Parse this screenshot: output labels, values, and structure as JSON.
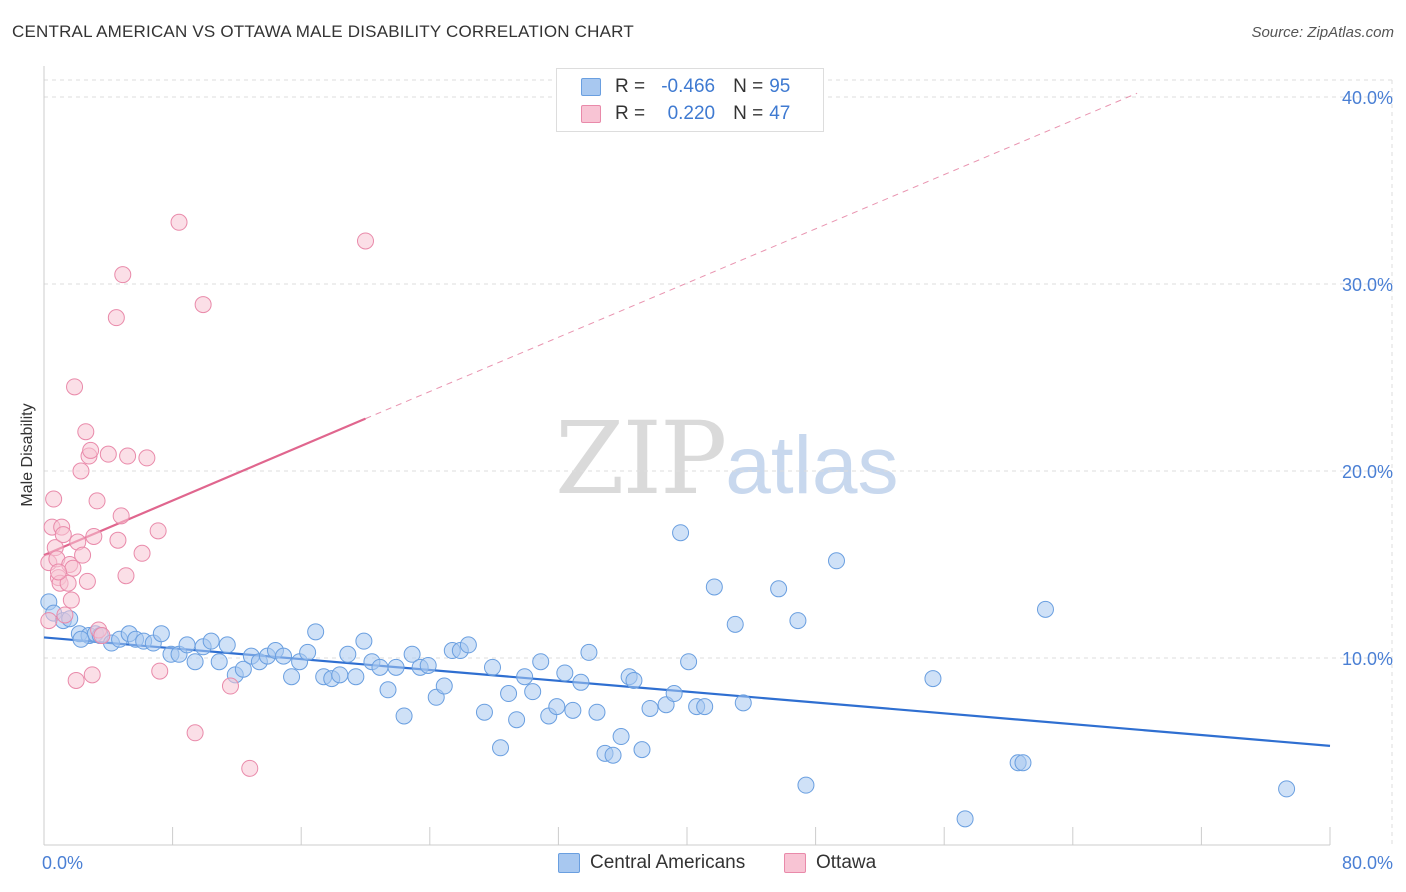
{
  "header": {
    "title": "CENTRAL AMERICAN VS OTTAWA MALE DISABILITY CORRELATION CHART",
    "source": "Source: ZipAtlas.com"
  },
  "watermark": {
    "zip": "ZIP",
    "atlas": "atlas"
  },
  "legend": {
    "rows": [
      {
        "r_label": "R =",
        "r_value": "-0.466",
        "n_label": "N =",
        "n_value": "95",
        "color": "#a8c8f0",
        "border": "#6a9fe0"
      },
      {
        "r_label": "R =",
        "r_value": "0.220",
        "n_label": "N =",
        "n_value": "47",
        "color": "#f8c4d4",
        "border": "#e98aaa"
      }
    ]
  },
  "bottom_legend": {
    "items": [
      {
        "label": "Central Americans",
        "color": "#a8c8f0",
        "border": "#6a9fe0"
      },
      {
        "label": "Ottawa",
        "color": "#f8c4d4",
        "border": "#e98aaa"
      }
    ]
  },
  "chart_data": {
    "type": "scatter",
    "title": "CENTRAL AMERICAN VS OTTAWA MALE DISABILITY CORRELATION CHART",
    "xlabel": "",
    "ylabel": "Male Disability",
    "xlim": [
      0,
      80
    ],
    "ylim": [
      0,
      40
    ],
    "x_tick_labels": [
      "0.0%",
      "80.0%"
    ],
    "y_ticks": [
      10,
      20,
      30,
      40
    ],
    "y_tick_labels": [
      "10.0%",
      "20.0%",
      "30.0%",
      "40.0%"
    ],
    "grid": true,
    "legend_position": "top-center",
    "series": [
      {
        "name": "Central Americans",
        "color": "#a8c8f0",
        "stroke": "#6a9fe0",
        "trend": {
          "x0": 0,
          "y0": 11.1,
          "x1": 80,
          "y1": 5.3,
          "color": "#2f6fd1"
        },
        "points": [
          [
            0.3,
            13.0
          ],
          [
            0.6,
            12.4
          ],
          [
            1.2,
            12.0
          ],
          [
            1.6,
            12.1
          ],
          [
            2.2,
            11.3
          ],
          [
            2.8,
            11.2
          ],
          [
            3.2,
            11.3
          ],
          [
            3.5,
            11.2
          ],
          [
            4.2,
            10.8
          ],
          [
            4.7,
            11.0
          ],
          [
            5.3,
            11.3
          ],
          [
            5.7,
            11.0
          ],
          [
            6.2,
            10.9
          ],
          [
            6.8,
            10.8
          ],
          [
            7.3,
            11.3
          ],
          [
            7.9,
            10.2
          ],
          [
            8.4,
            10.2
          ],
          [
            8.9,
            10.7
          ],
          [
            9.4,
            9.8
          ],
          [
            9.9,
            10.6
          ],
          [
            10.4,
            10.9
          ],
          [
            10.9,
            9.8
          ],
          [
            11.4,
            10.7
          ],
          [
            11.9,
            9.1
          ],
          [
            12.4,
            9.4
          ],
          [
            12.9,
            10.1
          ],
          [
            13.4,
            9.8
          ],
          [
            13.9,
            10.1
          ],
          [
            14.4,
            10.4
          ],
          [
            14.9,
            10.1
          ],
          [
            15.4,
            9.0
          ],
          [
            15.9,
            9.8
          ],
          [
            16.4,
            10.3
          ],
          [
            16.9,
            11.4
          ],
          [
            17.4,
            9.0
          ],
          [
            17.9,
            8.9
          ],
          [
            18.4,
            9.1
          ],
          [
            18.9,
            10.2
          ],
          [
            19.4,
            9.0
          ],
          [
            19.9,
            10.9
          ],
          [
            20.4,
            9.8
          ],
          [
            20.9,
            9.5
          ],
          [
            21.4,
            8.3
          ],
          [
            21.9,
            9.5
          ],
          [
            22.4,
            6.9
          ],
          [
            22.9,
            10.2
          ],
          [
            23.4,
            9.5
          ],
          [
            23.9,
            9.6
          ],
          [
            24.4,
            7.9
          ],
          [
            24.9,
            8.5
          ],
          [
            25.4,
            10.4
          ],
          [
            25.9,
            10.4
          ],
          [
            26.4,
            10.7
          ],
          [
            27.4,
            7.1
          ],
          [
            27.9,
            9.5
          ],
          [
            28.4,
            5.2
          ],
          [
            28.9,
            8.1
          ],
          [
            29.4,
            6.7
          ],
          [
            29.9,
            9.0
          ],
          [
            30.4,
            8.2
          ],
          [
            30.9,
            9.8
          ],
          [
            31.4,
            6.9
          ],
          [
            31.9,
            7.4
          ],
          [
            32.4,
            9.2
          ],
          [
            32.9,
            7.2
          ],
          [
            33.4,
            8.7
          ],
          [
            33.9,
            10.3
          ],
          [
            34.4,
            7.1
          ],
          [
            34.9,
            4.9
          ],
          [
            35.4,
            4.8
          ],
          [
            35.9,
            5.8
          ],
          [
            36.4,
            9.0
          ],
          [
            36.7,
            8.8
          ],
          [
            37.2,
            5.1
          ],
          [
            37.7,
            7.3
          ],
          [
            38.7,
            7.5
          ],
          [
            39.2,
            8.1
          ],
          [
            39.6,
            16.7
          ],
          [
            40.1,
            9.8
          ],
          [
            40.6,
            7.4
          ],
          [
            41.1,
            7.4
          ],
          [
            41.7,
            13.8
          ],
          [
            43.0,
            11.8
          ],
          [
            43.5,
            7.6
          ],
          [
            45.7,
            13.7
          ],
          [
            46.9,
            12.0
          ],
          [
            47.4,
            3.2
          ],
          [
            49.3,
            15.2
          ],
          [
            55.3,
            8.9
          ],
          [
            57.3,
            1.4
          ],
          [
            60.6,
            4.4
          ],
          [
            60.9,
            4.4
          ],
          [
            62.3,
            12.6
          ],
          [
            77.3,
            3.0
          ],
          [
            2.3,
            11.0
          ]
        ]
      },
      {
        "name": "Ottawa",
        "color": "#f8c4d4",
        "stroke": "#e98aaa",
        "trend": {
          "x0": 0,
          "y0": 15.5,
          "x1": 20.0,
          "y1": 22.8,
          "color": "#e0668e",
          "dash_to": {
            "x": 68.0,
            "y": 40.2
          }
        },
        "points": [
          [
            0.3,
            15.1
          ],
          [
            0.3,
            12.0
          ],
          [
            0.5,
            17.0
          ],
          [
            0.6,
            18.5
          ],
          [
            0.7,
            15.9
          ],
          [
            0.8,
            15.3
          ],
          [
            0.9,
            14.3
          ],
          [
            1.0,
            14.0
          ],
          [
            1.1,
            17.0
          ],
          [
            1.2,
            16.6
          ],
          [
            1.3,
            12.3
          ],
          [
            1.5,
            14.0
          ],
          [
            1.6,
            15.0
          ],
          [
            1.7,
            13.1
          ],
          [
            1.8,
            14.8
          ],
          [
            1.9,
            24.5
          ],
          [
            2.0,
            8.8
          ],
          [
            2.1,
            16.2
          ],
          [
            2.3,
            20.0
          ],
          [
            2.4,
            15.5
          ],
          [
            2.6,
            22.1
          ],
          [
            2.7,
            14.1
          ],
          [
            2.8,
            20.8
          ],
          [
            2.9,
            21.1
          ],
          [
            3.0,
            9.1
          ],
          [
            3.1,
            16.5
          ],
          [
            3.3,
            18.4
          ],
          [
            3.4,
            11.5
          ],
          [
            3.6,
            11.2
          ],
          [
            4.0,
            20.9
          ],
          [
            4.5,
            28.2
          ],
          [
            4.8,
            17.6
          ],
          [
            4.9,
            30.5
          ],
          [
            5.1,
            14.4
          ],
          [
            5.2,
            20.8
          ],
          [
            6.1,
            15.6
          ],
          [
            6.4,
            20.7
          ],
          [
            7.1,
            16.8
          ],
          [
            7.2,
            9.3
          ],
          [
            8.4,
            33.3
          ],
          [
            9.4,
            6.0
          ],
          [
            9.9,
            28.9
          ],
          [
            11.6,
            8.5
          ],
          [
            12.8,
            4.1
          ],
          [
            20.0,
            32.3
          ],
          [
            4.6,
            16.3
          ],
          [
            0.9,
            14.6
          ]
        ]
      }
    ]
  }
}
